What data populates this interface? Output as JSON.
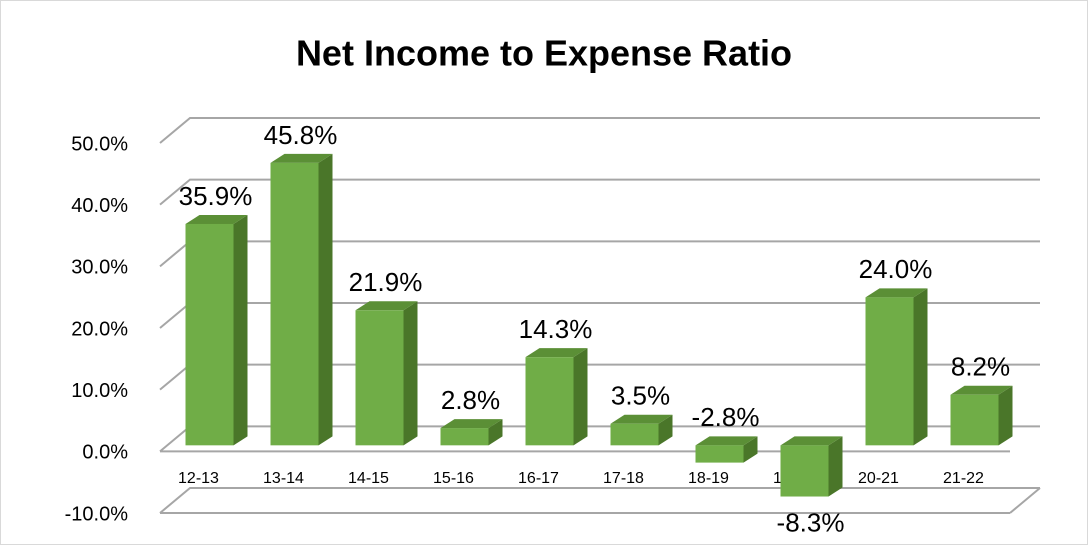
{
  "chart_data": {
    "type": "bar3d",
    "title": "Net Income to Expense Ratio",
    "categories": [
      "12-13",
      "13-14",
      "14-15",
      "15-16",
      "16-17",
      "17-18",
      "18-19",
      "19-20",
      "20-21",
      "21-22"
    ],
    "values": [
      35.9,
      45.8,
      21.9,
      2.8,
      14.3,
      3.5,
      -2.8,
      -8.3,
      24.0,
      8.2
    ],
    "value_labels": [
      "35.9%",
      "45.8%",
      "21.9%",
      "2.8%",
      "14.3%",
      "3.5%",
      "-2.8%",
      "-8.3%",
      "24.0%",
      "8.2%"
    ],
    "color": "#70ad47",
    "ylim": [
      -10,
      50
    ],
    "yticks": [
      {
        "value": -10,
        "label": "-10.0%"
      },
      {
        "value": 0,
        "label": "0.0%"
      },
      {
        "value": 10,
        "label": "10.0%"
      },
      {
        "value": 20,
        "label": "20.0%"
      },
      {
        "value": 30,
        "label": "30.0%"
      },
      {
        "value": 40,
        "label": "40.0%"
      },
      {
        "value": 50,
        "label": "50.0%"
      }
    ],
    "grid": true
  }
}
